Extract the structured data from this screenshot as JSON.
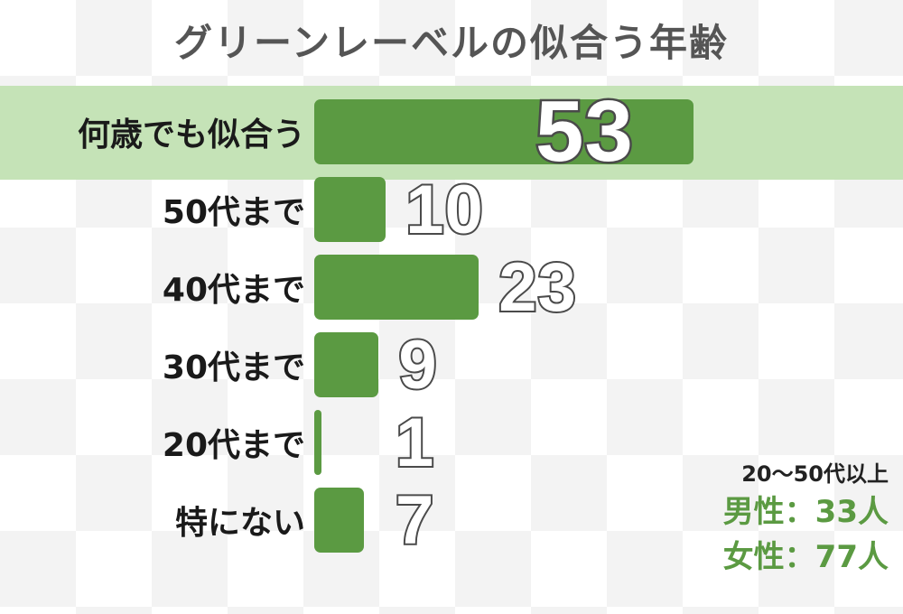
{
  "chart_data": {
    "type": "bar",
    "title": "グリーンレーベルの似合う年齢",
    "categories": [
      "何歳でも似合う",
      "50代まで",
      "40代まで",
      "30代まで",
      "20代まで",
      "特にない"
    ],
    "values": [
      53,
      10,
      23,
      9,
      1,
      7
    ],
    "xlim": [
      0,
      53
    ],
    "highlight_category": "何歳でも似合う",
    "colors": {
      "bar": "#5b9a42",
      "highlight_row": "#c5e3b7",
      "value_stroke": "#4a4a4a"
    }
  },
  "note": {
    "line1": "20～50代以上",
    "line2": "男性：33人",
    "line3": "女性：77人"
  }
}
